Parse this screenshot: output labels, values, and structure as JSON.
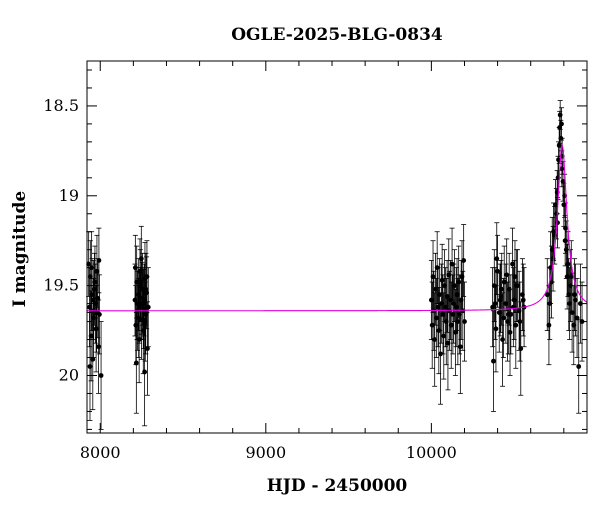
{
  "chart_data": {
    "type": "scatter",
    "title": "OGLE-2025-BLG-0834",
    "xlabel": "HJD - 2450000",
    "ylabel": "I magnitude",
    "xlim": [
      7920,
      10940
    ],
    "ylim": [
      20.32,
      18.25
    ],
    "y_inverted": true,
    "x_ticks": [
      8000,
      9000,
      10000
    ],
    "y_ticks": [
      18.5,
      19,
      19.5,
      20
    ],
    "y_tick_labels": [
      "18.5",
      "19",
      "19.5",
      "20"
    ],
    "grid": false,
    "colors": {
      "points": "#000000",
      "model": "#e000e0"
    },
    "model": {
      "baseline": 19.64,
      "peak_time": 10790,
      "peak_mag": 18.72,
      "timescale_days": 35
    },
    "series": [
      {
        "points": [
          [
            7930,
            19.38,
            0.18
          ],
          [
            7935,
            19.62,
            0.22
          ],
          [
            7940,
            19.45,
            0.2
          ],
          [
            7945,
            19.78,
            0.25
          ],
          [
            7950,
            19.55,
            0.2
          ],
          [
            7955,
            19.91,
            0.28
          ],
          [
            7960,
            19.68,
            0.22
          ],
          [
            7965,
            19.52,
            0.2
          ],
          [
            7970,
            19.6,
            0.22
          ],
          [
            7975,
            19.74,
            0.24
          ],
          [
            7980,
            19.42,
            0.2
          ],
          [
            7985,
            19.57,
            0.22
          ],
          [
            7990,
            19.84,
            0.26
          ],
          [
            7995,
            19.66,
            0.22
          ],
          [
            7938,
            19.95,
            0.3
          ],
          [
            7948,
            19.4,
            0.2
          ],
          [
            7958,
            19.58,
            0.22
          ],
          [
            7968,
            19.48,
            0.2
          ],
          [
            7978,
            19.65,
            0.22
          ],
          [
            8005,
            20.0,
            0.3
          ],
          [
            7992,
            19.36,
            0.18
          ],
          [
            8210,
            19.58,
            0.2
          ],
          [
            8215,
            19.72,
            0.22
          ],
          [
            8220,
            19.48,
            0.2
          ],
          [
            8225,
            19.64,
            0.22
          ],
          [
            8230,
            19.55,
            0.2
          ],
          [
            8235,
            19.8,
            0.24
          ],
          [
            8240,
            19.42,
            0.18
          ],
          [
            8245,
            19.6,
            0.2
          ],
          [
            8250,
            19.69,
            0.22
          ],
          [
            8255,
            19.52,
            0.2
          ],
          [
            8260,
            19.75,
            0.24
          ],
          [
            8265,
            19.58,
            0.2
          ],
          [
            8270,
            19.46,
            0.2
          ],
          [
            8275,
            19.66,
            0.22
          ],
          [
            8280,
            19.54,
            0.2
          ],
          [
            8285,
            19.85,
            0.26
          ],
          [
            8290,
            19.62,
            0.22
          ],
          [
            8212,
            19.4,
            0.18
          ],
          [
            8222,
            19.6,
            0.2
          ],
          [
            8232,
            19.68,
            0.22
          ],
          [
            8242,
            19.5,
            0.2
          ],
          [
            8252,
            19.57,
            0.2
          ],
          [
            8262,
            19.63,
            0.22
          ],
          [
            8272,
            19.7,
            0.22
          ],
          [
            8282,
            19.45,
            0.2
          ],
          [
            8218,
            19.93,
            0.28
          ],
          [
            8248,
            19.35,
            0.18
          ],
          [
            8268,
            19.98,
            0.3
          ],
          [
            8236,
            19.62,
            0.2
          ],
          [
            8276,
            19.52,
            0.2
          ],
          [
            8258,
            19.6,
            0.2
          ],
          [
            10000,
            19.58,
            0.22
          ],
          [
            10005,
            19.72,
            0.24
          ],
          [
            10010,
            19.45,
            0.2
          ],
          [
            10015,
            19.64,
            0.22
          ],
          [
            10020,
            19.8,
            0.26
          ],
          [
            10025,
            19.52,
            0.2
          ],
          [
            10030,
            19.68,
            0.22
          ],
          [
            10035,
            19.4,
            0.2
          ],
          [
            10040,
            19.62,
            0.22
          ],
          [
            10045,
            19.75,
            0.24
          ],
          [
            10050,
            19.55,
            0.2
          ],
          [
            10055,
            19.88,
            0.28
          ],
          [
            10060,
            19.6,
            0.22
          ],
          [
            10065,
            19.47,
            0.2
          ],
          [
            10070,
            19.66,
            0.22
          ],
          [
            10075,
            19.78,
            0.24
          ],
          [
            10080,
            19.5,
            0.2
          ],
          [
            10085,
            19.62,
            0.22
          ],
          [
            10090,
            19.7,
            0.24
          ],
          [
            10095,
            19.56,
            0.2
          ],
          [
            10100,
            19.82,
            0.26
          ],
          [
            10105,
            19.44,
            0.2
          ],
          [
            10110,
            19.64,
            0.22
          ],
          [
            10115,
            19.58,
            0.22
          ],
          [
            10120,
            19.72,
            0.24
          ],
          [
            10125,
            19.38,
            0.2
          ],
          [
            10130,
            19.66,
            0.22
          ],
          [
            10135,
            19.6,
            0.22
          ],
          [
            10140,
            19.5,
            0.2
          ],
          [
            10145,
            19.76,
            0.24
          ],
          [
            10150,
            19.62,
            0.22
          ],
          [
            10155,
            19.55,
            0.2
          ],
          [
            10160,
            19.7,
            0.24
          ],
          [
            10165,
            19.48,
            0.2
          ],
          [
            10170,
            19.66,
            0.22
          ],
          [
            10175,
            19.84,
            0.26
          ],
          [
            10180,
            19.58,
            0.22
          ],
          [
            10185,
            19.45,
            0.2
          ],
          [
            10190,
            19.64,
            0.22
          ],
          [
            10195,
            19.36,
            0.2
          ],
          [
            10200,
            19.7,
            0.22
          ],
          [
            10370,
            19.62,
            0.22
          ],
          [
            10380,
            19.5,
            0.2
          ],
          [
            10390,
            19.74,
            0.24
          ],
          [
            10400,
            19.42,
            0.2
          ],
          [
            10410,
            19.65,
            0.22
          ],
          [
            10420,
            19.56,
            0.2
          ],
          [
            10430,
            19.8,
            0.26
          ],
          [
            10440,
            19.48,
            0.2
          ],
          [
            10450,
            19.6,
            0.22
          ],
          [
            10460,
            19.7,
            0.22
          ],
          [
            10470,
            19.52,
            0.2
          ],
          [
            10480,
            19.66,
            0.22
          ],
          [
            10490,
            19.38,
            0.2
          ],
          [
            10500,
            19.58,
            0.22
          ],
          [
            10510,
            19.72,
            0.24
          ],
          [
            10520,
            19.5,
            0.2
          ],
          [
            10530,
            19.64,
            0.22
          ],
          [
            10540,
            19.85,
            0.26
          ],
          [
            10550,
            19.55,
            0.2
          ],
          [
            10560,
            19.62,
            0.22
          ],
          [
            10375,
            19.92,
            0.28
          ],
          [
            10395,
            19.35,
            0.2
          ],
          [
            10415,
            19.58,
            0.2
          ],
          [
            10435,
            19.68,
            0.22
          ],
          [
            10455,
            19.44,
            0.2
          ],
          [
            10475,
            19.76,
            0.24
          ],
          [
            10495,
            19.62,
            0.22
          ],
          [
            10515,
            19.5,
            0.2
          ],
          [
            10535,
            19.7,
            0.22
          ],
          [
            10555,
            19.58,
            0.2
          ],
          [
            10385,
            19.6,
            0.2
          ],
          [
            10425,
            19.52,
            0.2
          ],
          [
            10465,
            19.66,
            0.22
          ],
          [
            10505,
            19.45,
            0.2
          ],
          [
            10700,
            19.55,
            0.2
          ],
          [
            10710,
            19.72,
            0.22
          ],
          [
            10720,
            19.4,
            0.2
          ],
          [
            10725,
            19.48,
            0.2
          ],
          [
            10730,
            19.3,
            0.18
          ],
          [
            10738,
            19.2,
            0.16
          ],
          [
            10745,
            19.22,
            0.16
          ],
          [
            10750,
            19.05,
            0.14
          ],
          [
            10755,
            19.1,
            0.14
          ],
          [
            10760,
            18.98,
            0.12
          ],
          [
            10765,
            18.9,
            0.12
          ],
          [
            10768,
            18.8,
            0.1
          ],
          [
            10772,
            18.72,
            0.1
          ],
          [
            10775,
            18.62,
            0.09
          ],
          [
            10778,
            18.55,
            0.08
          ],
          [
            10782,
            18.68,
            0.1
          ],
          [
            10786,
            18.6,
            0.09
          ],
          [
            10790,
            18.78,
            0.1
          ],
          [
            10795,
            18.92,
            0.11
          ],
          [
            10800,
            19.05,
            0.12
          ],
          [
            10805,
            19.0,
            0.12
          ],
          [
            10810,
            19.18,
            0.14
          ],
          [
            10815,
            19.3,
            0.16
          ],
          [
            10820,
            19.45,
            0.18
          ],
          [
            10825,
            19.38,
            0.18
          ],
          [
            10830,
            19.55,
            0.2
          ],
          [
            10835,
            19.6,
            0.2
          ],
          [
            10840,
            19.5,
            0.2
          ],
          [
            10850,
            19.65,
            0.22
          ],
          [
            10860,
            19.72,
            0.22
          ],
          [
            10870,
            19.58,
            0.2
          ],
          [
            10880,
            19.68,
            0.22
          ],
          [
            10890,
            19.95,
            0.26
          ],
          [
            10900,
            19.6,
            0.22
          ],
          [
            10910,
            19.7,
            0.22
          ],
          [
            10715,
            19.6,
            0.2
          ],
          [
            10735,
            19.35,
            0.18
          ],
          [
            10762,
            19.15,
            0.14
          ],
          [
            10788,
            18.85,
            0.1
          ],
          [
            10808,
            19.25,
            0.14
          ],
          [
            10845,
            19.45,
            0.2
          ],
          [
            10865,
            19.55,
            0.2
          ]
        ]
      }
    ]
  }
}
